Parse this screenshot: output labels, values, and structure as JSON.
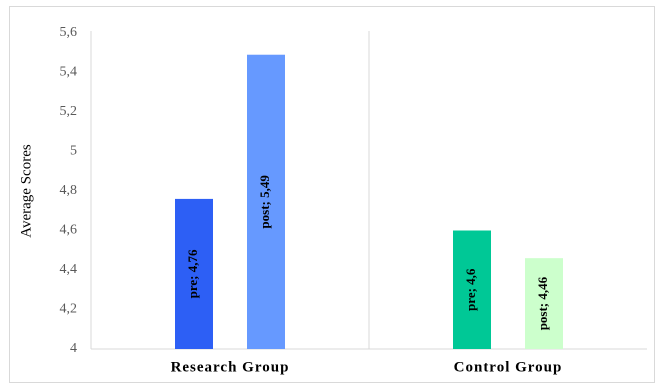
{
  "chart_data": {
    "type": "bar",
    "title": "",
    "xlabel": "",
    "ylabel": "Average Scores",
    "ylim": [
      4,
      5.6
    ],
    "yticks": [
      "4",
      "4,2",
      "4,4",
      "4,6",
      "4,8",
      "5",
      "5,2",
      "5,4",
      "5,6"
    ],
    "ytick_values": [
      4,
      4.2,
      4.4,
      4.6,
      4.8,
      5.0,
      5.2,
      5.4,
      5.6
    ],
    "grid": false,
    "legend": "none",
    "categories": [
      "Research Group",
      "Control Group"
    ],
    "bars": [
      {
        "category": "Research Group",
        "value": 4.76,
        "label": "pre; 4,76",
        "color": "#2d5ff5"
      },
      {
        "category": "Research Group",
        "value": 5.49,
        "label": "post; 5,49",
        "color": "#6699ff"
      },
      {
        "category": "Control Group",
        "value": 4.6,
        "label": "pre; 4,6",
        "color": "#00c896"
      },
      {
        "category": "Control Group",
        "value": 4.46,
        "label": "post; 4,46",
        "color": "#ccffcc"
      }
    ]
  }
}
